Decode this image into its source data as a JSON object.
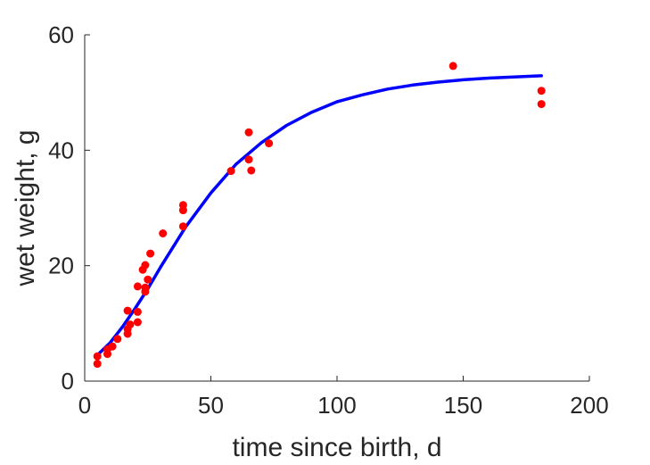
{
  "chart_data": {
    "type": "scatter",
    "title": "",
    "xlabel": "time since birth, d",
    "ylabel": "wet weight, g",
    "xlim": [
      0,
      200
    ],
    "ylim": [
      0,
      60
    ],
    "xticks": [
      0,
      50,
      100,
      150,
      200
    ],
    "yticks": [
      0,
      20,
      40,
      60
    ],
    "grid": false,
    "series": [
      {
        "kind": "points",
        "color": "#ff0000",
        "points": [
          [
            5,
            3.0
          ],
          [
            5,
            4.3
          ],
          [
            9,
            4.7
          ],
          [
            9,
            5.5
          ],
          [
            11,
            6.0
          ],
          [
            13,
            7.3
          ],
          [
            17,
            8.2
          ],
          [
            17,
            9.0
          ],
          [
            18,
            9.8
          ],
          [
            21,
            10.2
          ],
          [
            21,
            12.0
          ],
          [
            17,
            12.2
          ],
          [
            21,
            16.4
          ],
          [
            24,
            15.5
          ],
          [
            24,
            16.2
          ],
          [
            25,
            17.6
          ],
          [
            23,
            19.3
          ],
          [
            24,
            20.1
          ],
          [
            26,
            22.1
          ],
          [
            31,
            25.6
          ],
          [
            39,
            26.8
          ],
          [
            39,
            29.6
          ],
          [
            39,
            30.5
          ],
          [
            58,
            36.4
          ],
          [
            65,
            38.4
          ],
          [
            66,
            36.5
          ],
          [
            65,
            43.1
          ],
          [
            73,
            41.2
          ],
          [
            146,
            54.6
          ],
          [
            181,
            50.3
          ],
          [
            181,
            48.0
          ]
        ]
      },
      {
        "kind": "line",
        "color": "#0000ff",
        "points": [
          [
            5,
            4.5
          ],
          [
            10,
            6.6
          ],
          [
            15,
            9.4
          ],
          [
            20,
            12.6
          ],
          [
            25,
            16.0
          ],
          [
            30,
            19.7
          ],
          [
            40,
            26.7
          ],
          [
            50,
            32.6
          ],
          [
            60,
            37.6
          ],
          [
            70,
            41.3
          ],
          [
            80,
            44.3
          ],
          [
            90,
            46.6
          ],
          [
            100,
            48.4
          ],
          [
            110,
            49.6
          ],
          [
            120,
            50.6
          ],
          [
            130,
            51.3
          ],
          [
            140,
            51.8
          ],
          [
            150,
            52.2
          ],
          [
            160,
            52.5
          ],
          [
            170,
            52.7
          ],
          [
            181,
            52.9
          ]
        ]
      }
    ]
  }
}
